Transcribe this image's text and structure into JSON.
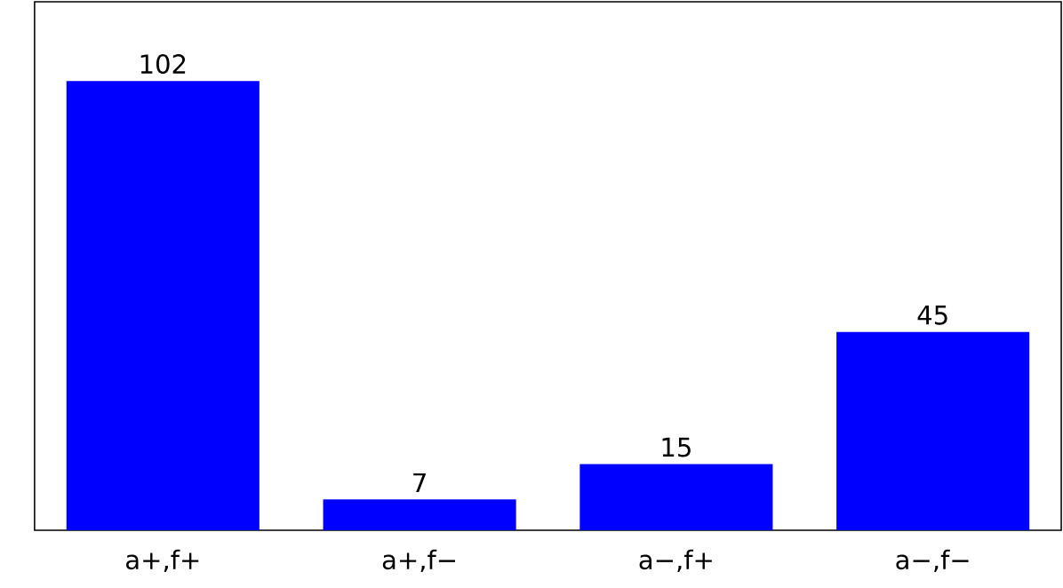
{
  "chart_data": {
    "type": "bar",
    "categories": [
      "a+,f+",
      "a+,f−",
      "a−,f+",
      "a−,f−"
    ],
    "values": [
      102,
      7,
      15,
      45
    ],
    "color": "#0000ff",
    "ylim": [
      0,
      120
    ],
    "data_labels": true,
    "tick_labels": "x"
  }
}
